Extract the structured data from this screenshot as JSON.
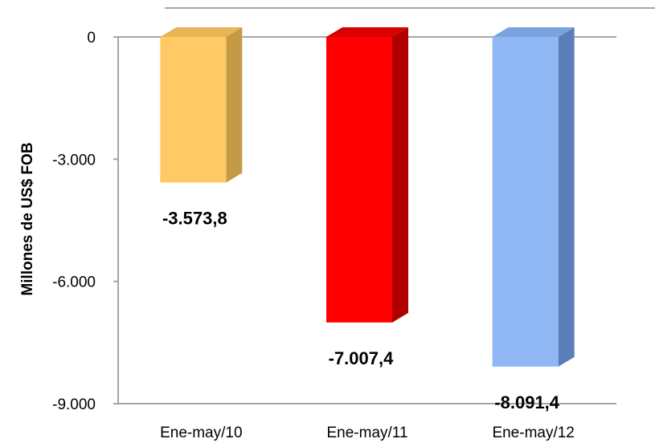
{
  "chart_data": {
    "type": "bar",
    "categories": [
      "Ene-may/10",
      "Ene-may/11",
      "Ene-may/12"
    ],
    "values": [
      -3573.8,
      -7007.4,
      -8091.4
    ],
    "data_labels": [
      "-3.573,8",
      "-7.007,4",
      "-8.091,4"
    ],
    "ylabel": "Millones de US$ FOB",
    "ylim": [
      -9000,
      0
    ],
    "yticks": [
      0,
      -3000,
      -6000,
      -9000
    ],
    "ytick_labels": [
      "0",
      "-3.000",
      "-6.000",
      "-9.000"
    ],
    "colors": [
      "#FFC966",
      "#FF0000",
      "#8FB8F5"
    ],
    "side_colors": [
      "#C49A45",
      "#B00000",
      "#5A7FB8"
    ],
    "top_colors": [
      "#E8B454",
      "#D80000",
      "#7AA2DE"
    ],
    "grid": false,
    "legend": "none",
    "style": "3d-column"
  }
}
